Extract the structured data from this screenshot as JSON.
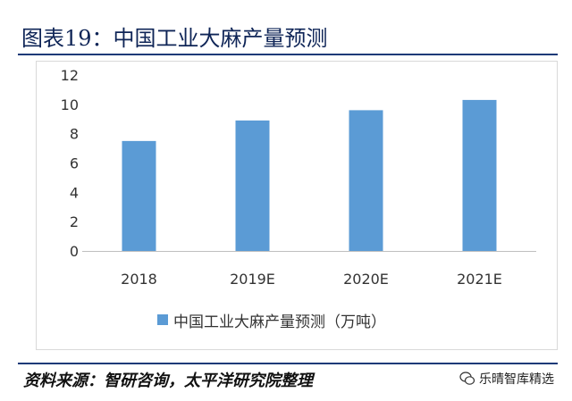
{
  "header": {
    "title": "图表19：中国工业大麻产量预测"
  },
  "chart_data": {
    "type": "bar",
    "categories": [
      "2018",
      "2019E",
      "2020E",
      "2021E"
    ],
    "series": [
      {
        "name": "中国工业大麻产量预测（万吨）",
        "values": [
          7.5,
          8.9,
          9.6,
          10.3
        ],
        "color": "#5b9bd5"
      }
    ],
    "ylim": [
      0,
      12
    ],
    "yticks": [
      "0",
      "2",
      "4",
      "6",
      "8",
      "10",
      "12"
    ],
    "grid": false,
    "legend_position": "bottom"
  },
  "footer": {
    "source": "资料来源：智研咨询，太平洋研究院整理",
    "watermark": "乐晴智库精选",
    "watermark_icon": "wechat-icon"
  }
}
